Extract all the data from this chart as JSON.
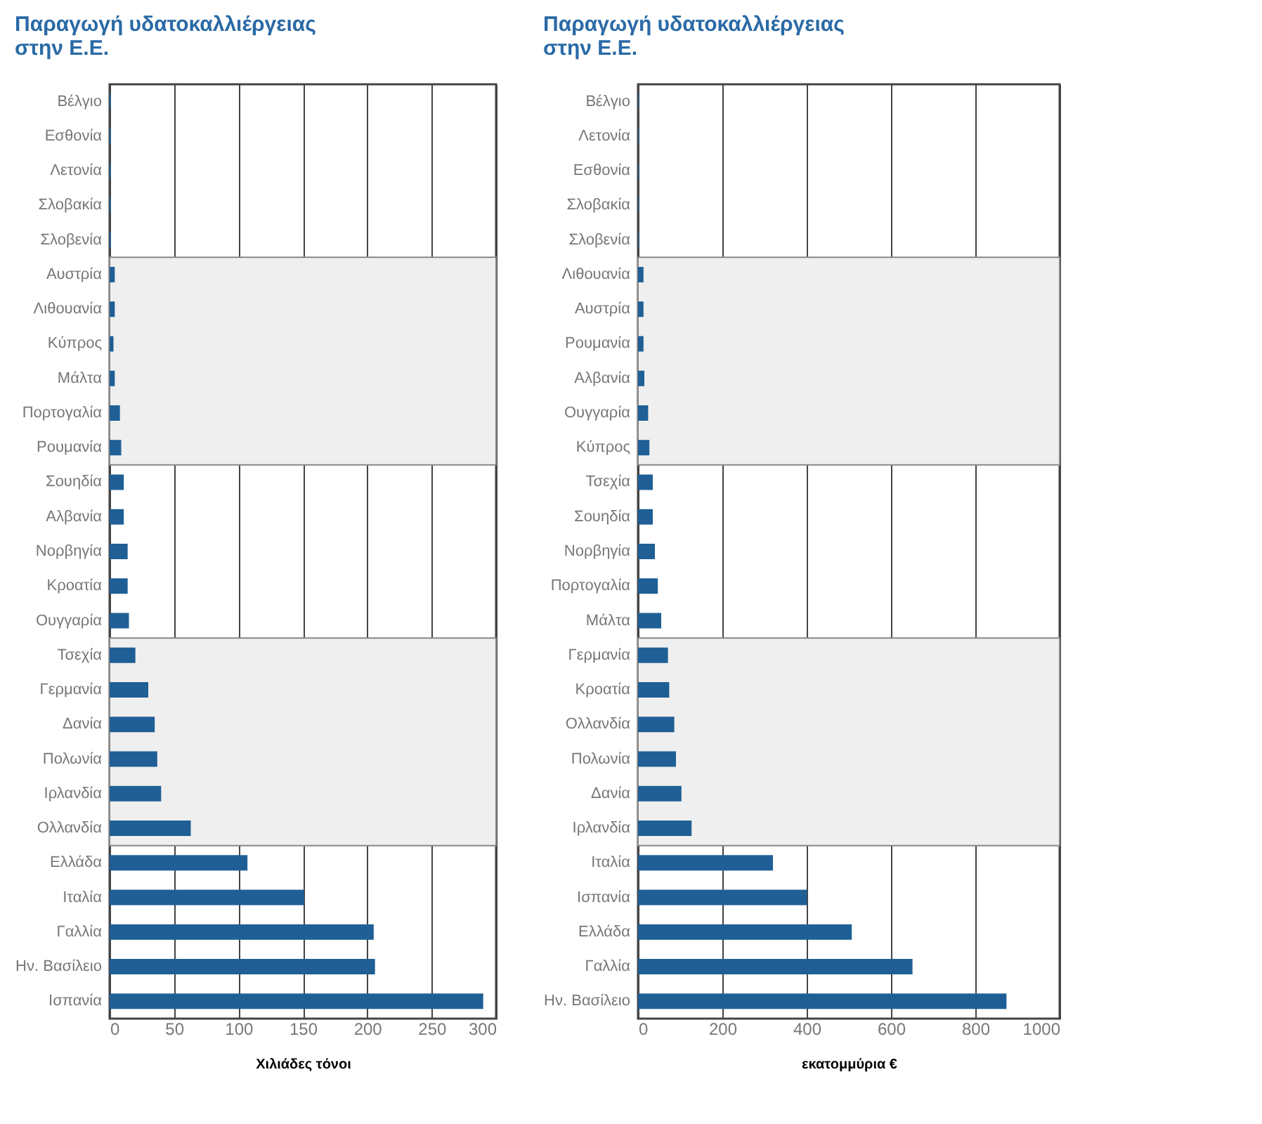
{
  "chart_data": [
    {
      "type": "bar",
      "orientation": "horizontal",
      "title": "Παραγωγή υδατοκαλλιέργειας\nστην Ε.Ε.",
      "xlabel": "Χιλιάδες τόνοι",
      "categories": [
        "Βέλγιο",
        "Εσθονία",
        "Λετονία",
        "Σλοβακία",
        "Σλοβενία",
        "Αυστρία",
        "Λιθουανία",
        "Κύπρος",
        "Μάλτα",
        "Πορτογαλία",
        "Ρουμανία",
        "Σουηδία",
        "Αλβανία",
        "Νορβηγία",
        "Κροατία",
        "Ουγγαρία",
        "Τσεχία",
        "Γερμανία",
        "Δανία",
        "Πολωνία",
        "Ιρλανδία",
        "Ολλανδία",
        "Ελλάδα",
        "Ιταλία",
        "Γαλλία",
        "Ην. Βασίλειο",
        "Ισπανία"
      ],
      "values": [
        1,
        1,
        1,
        1,
        1,
        4,
        4,
        3,
        4,
        8,
        9,
        11,
        11,
        14,
        14,
        15,
        20,
        30,
        35,
        37,
        40,
        63,
        107,
        151,
        205,
        206,
        290
      ],
      "color": "#1f5f95",
      "xlim": [
        0,
        300
      ],
      "xticks": [
        0,
        50,
        100,
        150,
        200,
        250,
        300
      ],
      "grid": "x",
      "bands": [
        {
          "axis": "y",
          "from": "Αυστρία",
          "to": "Ρουμανία",
          "color": "#efefef"
        },
        {
          "axis": "y",
          "from": "Τσεχία",
          "to": "Ολλανδία",
          "color": "#efefef"
        }
      ]
    },
    {
      "type": "bar",
      "orientation": "horizontal",
      "title": "Παραγωγή υδατοκαλλιέργειας\nστην Ε.Ε.",
      "xlabel": "εκατομμύρια €",
      "categories": [
        "Βέλγιο",
        "Λετονία",
        "Εσθονία",
        "Σλοβακία",
        "Σλοβενία",
        "Λιθουανία",
        "Αυστρία",
        "Ρουμανία",
        "Αλβανία",
        "Ουγγαρία",
        "Κύπρος",
        "Τσεχία",
        "Σουηδία",
        "Νορβηγία",
        "Πορτογαλία",
        "Μάλτα",
        "Γερμανία",
        "Κροατία",
        "Ολλανδία",
        "Πολωνία",
        "Δανία",
        "Ιρλανδία",
        "Ιταλία",
        "Ισπανία",
        "Ελλάδα",
        "Γαλλία",
        "Ην. Βασίλειο"
      ],
      "values": [
        2,
        2,
        2,
        2,
        2,
        13,
        13,
        13,
        15,
        24,
        27,
        35,
        35,
        40,
        47,
        55,
        71,
        74,
        86,
        90,
        103,
        127,
        320,
        401,
        507,
        651,
        874
      ],
      "color": "#1f5f95",
      "xlim": [
        0,
        1000
      ],
      "xticks": [
        0,
        200,
        400,
        600,
        800,
        1000
      ],
      "grid": "x",
      "bands": [
        {
          "axis": "y",
          "from": "Λιθουανία",
          "to": "Κύπρος",
          "color": "#efefef"
        },
        {
          "axis": "y",
          "from": "Γερμανία",
          "to": "Ιρλανδία",
          "color": "#efefef"
        }
      ]
    }
  ]
}
